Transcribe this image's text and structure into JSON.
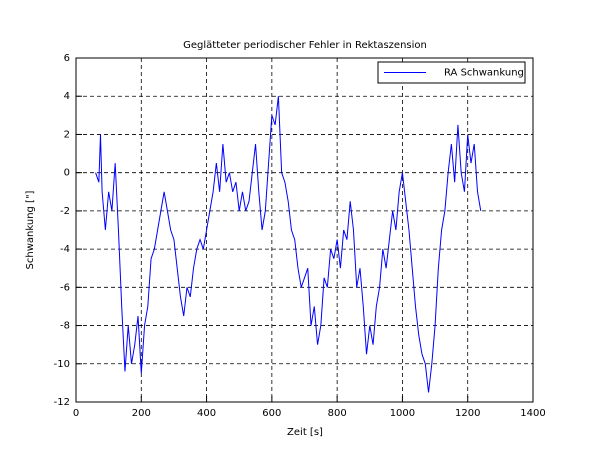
{
  "chart_data": {
    "type": "line",
    "title": "Geglätteter periodischer Fehler in Rektaszension",
    "x_label": "Zeit [s]",
    "y_label": "Schwankung [\"]",
    "xlim": [
      0,
      1400
    ],
    "xticks": [
      0,
      200,
      400,
      600,
      800,
      1000,
      1200,
      1400
    ],
    "ylim": [
      -12,
      6
    ],
    "yticks": [
      -12,
      -10,
      -8,
      -6,
      -4,
      -2,
      0,
      2,
      4,
      6
    ],
    "grid": true,
    "legend": "upper right",
    "x": [
      60,
      70,
      75,
      80,
      90,
      100,
      110,
      120,
      130,
      140,
      150,
      160,
      170,
      180,
      190,
      200,
      210,
      220,
      230,
      240,
      250,
      260,
      270,
      280,
      290,
      300,
      310,
      320,
      330,
      340,
      350,
      360,
      370,
      380,
      390,
      400,
      410,
      420,
      430,
      440,
      450,
      460,
      470,
      480,
      490,
      500,
      510,
      520,
      530,
      540,
      550,
      560,
      570,
      580,
      590,
      600,
      610,
      620,
      630,
      640,
      650,
      660,
      670,
      680,
      690,
      700,
      710,
      720,
      730,
      740,
      750,
      760,
      770,
      780,
      790,
      800,
      810,
      820,
      830,
      840,
      850,
      860,
      870,
      880,
      890,
      900,
      910,
      920,
      930,
      940,
      950,
      960,
      970,
      980,
      990,
      1000,
      1010,
      1020,
      1030,
      1040,
      1050,
      1060,
      1070,
      1080,
      1090,
      1100,
      1110,
      1120,
      1130,
      1140,
      1150,
      1160,
      1170,
      1180,
      1190,
      1200,
      1210,
      1220,
      1230,
      1240
    ],
    "series": [
      {
        "name": "RA Schwankung",
        "color": "#0000ff",
        "values": [
          0,
          -0.5,
          2,
          -1,
          -3,
          -1,
          -2,
          0.5,
          -3,
          -7,
          -10.4,
          -8,
          -10,
          -9,
          -7.5,
          -10.5,
          -8,
          -7,
          -4.5,
          -4,
          -3,
          -2,
          -1,
          -2,
          -3,
          -3.5,
          -5,
          -6.5,
          -7.5,
          -6,
          -6.5,
          -5,
          -4,
          -3.5,
          -4,
          -3,
          -2,
          -1,
          0.5,
          -1,
          1.5,
          -0.5,
          0,
          -1,
          -0.5,
          -2,
          -1,
          -2,
          -1.5,
          0,
          1.5,
          -1,
          -3,
          -2,
          0.5,
          3,
          2.5,
          4,
          0,
          -0.5,
          -1.5,
          -3,
          -3.5,
          -5,
          -6,
          -5.5,
          -5,
          -8,
          -7,
          -9,
          -8,
          -5.5,
          -6,
          -4,
          -4.5,
          -3.5,
          -5,
          -3,
          -3.5,
          -1.5,
          -3,
          -6,
          -5,
          -7,
          -9.5,
          -8,
          -9,
          -7,
          -6,
          -4,
          -5,
          -3.5,
          -2,
          -3,
          -1,
          0,
          -1.5,
          -3,
          -5,
          -7,
          -8.5,
          -9.5,
          -10,
          -11.5,
          -10,
          -8,
          -5,
          -3,
          -2,
          0,
          1.5,
          -0.5,
          2.5,
          0,
          -1,
          2,
          0.5,
          1.5,
          -1,
          -2
        ]
      }
    ]
  }
}
